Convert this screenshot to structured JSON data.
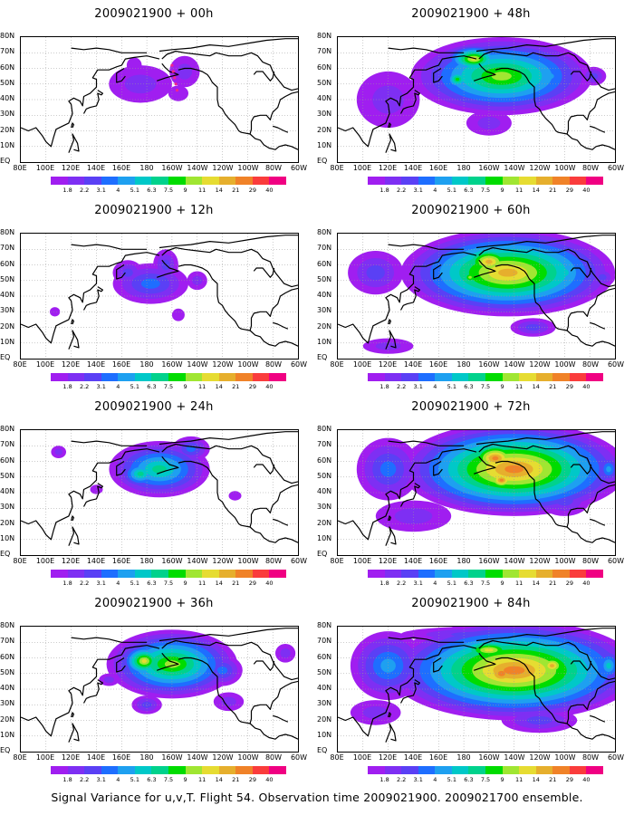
{
  "panels": [
    {
      "title": "2009021900 + 00h",
      "lead_hours": 0
    },
    {
      "title": "2009021900 + 12h",
      "lead_hours": 12
    },
    {
      "title": "2009021900 + 24h",
      "lead_hours": 24
    },
    {
      "title": "2009021900 + 36h",
      "lead_hours": 36
    },
    {
      "title": "2009021900 + 48h",
      "lead_hours": 48
    },
    {
      "title": "2009021900 + 60h",
      "lead_hours": 60
    },
    {
      "title": "2009021900 + 72h",
      "lead_hours": 72
    },
    {
      "title": "2009021900 + 84h",
      "lead_hours": 84
    }
  ],
  "axes": {
    "lon_labels": [
      "80E",
      "100E",
      "120E",
      "140E",
      "160E",
      "180",
      "160W",
      "140W",
      "120W",
      "100W",
      "80W",
      "60W"
    ],
    "lat_labels": [
      "80N",
      "70N",
      "60N",
      "50N",
      "40N",
      "30N",
      "20N",
      "10N",
      "EQ"
    ],
    "grid": "dotted"
  },
  "colorbar": {
    "labels": [
      "1.8",
      "2.2",
      "3.1",
      "4",
      "5.1",
      "6.3",
      "7.5",
      "9",
      "11",
      "14",
      "21",
      "29",
      "40"
    ],
    "colors": [
      "#a01ef0",
      "#7e2ff3",
      "#5a40f5",
      "#1e6eff",
      "#1ea0f0",
      "#00c8c8",
      "#00d28c",
      "#00dc00",
      "#a0e632",
      "#e6dc32",
      "#e6af2d",
      "#f08228",
      "#fa3c3c",
      "#f00082"
    ]
  },
  "caption": "Signal Variance for u,v,T. Flight 54. Observation time 2009021900. 2009021700 ensemble."
}
